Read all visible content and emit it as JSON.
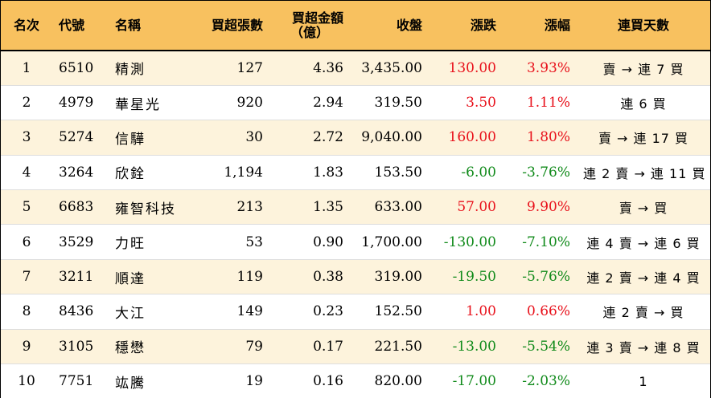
{
  "headers": {
    "rank": "名次",
    "code": "代號",
    "name": "名稱",
    "shares": "買超張數",
    "amount_line1": "買超金額",
    "amount_line2": "（億）",
    "close": "收盤",
    "change": "漲跌",
    "pct": "漲幅",
    "days": "連買天數"
  },
  "colors": {
    "header_bg": "#f8c15f",
    "stripe_bg": "#fdf3dc",
    "up": "#e8111b",
    "down": "#108a1a"
  },
  "rows": [
    {
      "rank": "1",
      "code": "6510",
      "name": "精測",
      "shares": "127",
      "amount": "4.36",
      "close": "3,435.00",
      "change": "130.00",
      "pct": "3.93%",
      "dir": "up",
      "days": "賣 → 連 7 買"
    },
    {
      "rank": "2",
      "code": "4979",
      "name": "華星光",
      "shares": "920",
      "amount": "2.94",
      "close": "319.50",
      "change": "3.50",
      "pct": "1.11%",
      "dir": "up",
      "days": "連 6 買"
    },
    {
      "rank": "3",
      "code": "5274",
      "name": "信驊",
      "shares": "30",
      "amount": "2.72",
      "close": "9,040.00",
      "change": "160.00",
      "pct": "1.80%",
      "dir": "up",
      "days": "賣 → 連 17 買"
    },
    {
      "rank": "4",
      "code": "3264",
      "name": "欣銓",
      "shares": "1,194",
      "amount": "1.83",
      "close": "153.50",
      "change": "-6.00",
      "pct": "-3.76%",
      "dir": "down",
      "days": "連 2 賣 → 連 11 買"
    },
    {
      "rank": "5",
      "code": "6683",
      "name": "雍智科技",
      "shares": "213",
      "amount": "1.35",
      "close": "633.00",
      "change": "57.00",
      "pct": "9.90%",
      "dir": "up",
      "days": "賣 → 買"
    },
    {
      "rank": "6",
      "code": "3529",
      "name": "力旺",
      "shares": "53",
      "amount": "0.90",
      "close": "1,700.00",
      "change": "-130.00",
      "pct": "-7.10%",
      "dir": "down",
      "days": "連 4 賣 → 連 6 買"
    },
    {
      "rank": "7",
      "code": "3211",
      "name": "順達",
      "shares": "119",
      "amount": "0.38",
      "close": "319.00",
      "change": "-19.50",
      "pct": "-5.76%",
      "dir": "down",
      "days": "連 2 賣 → 連 4 買"
    },
    {
      "rank": "8",
      "code": "8436",
      "name": "大江",
      "shares": "149",
      "amount": "0.23",
      "close": "152.50",
      "change": "1.00",
      "pct": "0.66%",
      "dir": "up",
      "days": "連 2 賣 → 買"
    },
    {
      "rank": "9",
      "code": "3105",
      "name": "穩懋",
      "shares": "79",
      "amount": "0.17",
      "close": "221.50",
      "change": "-13.00",
      "pct": "-5.54%",
      "dir": "down",
      "days": "連 3 賣 → 連 8 買"
    },
    {
      "rank": "10",
      "code": "7751",
      "name": "竑騰",
      "shares": "19",
      "amount": "0.16",
      "close": "820.00",
      "change": "-17.00",
      "pct": "-2.03%",
      "dir": "down",
      "days": "1"
    }
  ]
}
